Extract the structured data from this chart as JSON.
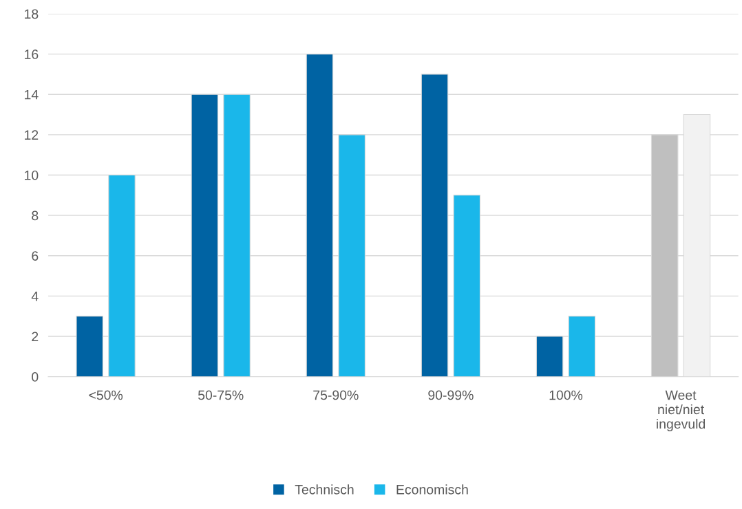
{
  "chart_data": {
    "type": "bar",
    "categories": [
      "<50%",
      "50-75%",
      "75-90%",
      "90-99%",
      "100%",
      "Weet niet/niet ingevuld"
    ],
    "series": [
      {
        "name": "Technisch",
        "color": "#0063a3",
        "colors": [
          "#0063a3",
          "#0063a3",
          "#0063a3",
          "#0063a3",
          "#0063a3",
          "#bfbfbf"
        ],
        "values": [
          3,
          14,
          16,
          15,
          2,
          12
        ]
      },
      {
        "name": "Economisch",
        "color": "#1ab7ea",
        "colors": [
          "#1ab7ea",
          "#1ab7ea",
          "#1ab7ea",
          "#1ab7ea",
          "#1ab7ea",
          "#f2f2f2"
        ],
        "values": [
          10,
          14,
          12,
          9,
          3,
          13
        ]
      }
    ],
    "ylim": [
      0,
      18
    ],
    "yticks": [
      0,
      2,
      4,
      6,
      8,
      10,
      12,
      14,
      16,
      18
    ],
    "grid": "y",
    "legend": "bottom"
  }
}
